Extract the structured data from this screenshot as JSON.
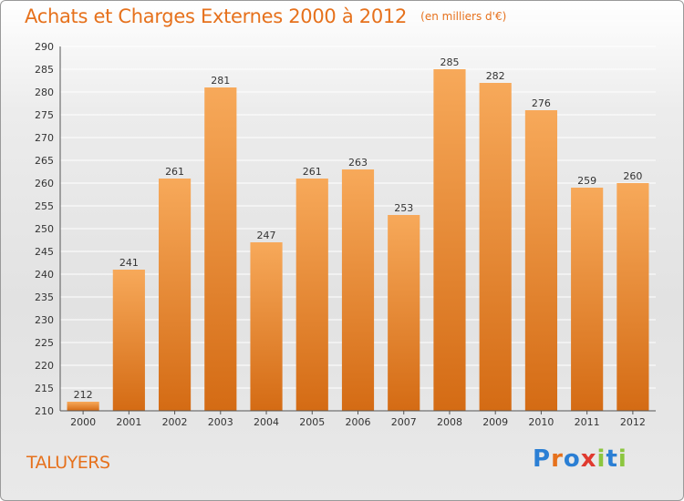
{
  "header": {
    "title": "Achats et Charges Externes 2000 à 2012",
    "subtitle": "(en milliers d'€)"
  },
  "footer": {
    "commune": "TALUYERS",
    "logo": {
      "text": "Proxiti",
      "letters": [
        {
          "char": "P",
          "color": "#2b7fd4"
        },
        {
          "char": "r",
          "color": "#e6711c"
        },
        {
          "char": "o",
          "color": "#2b7fd4"
        },
        {
          "char": "x",
          "color": "#e03a2f"
        },
        {
          "char": "i",
          "color": "#8cc63f"
        },
        {
          "char": "t",
          "color": "#2b7fd4"
        },
        {
          "char": "i",
          "color": "#8cc63f"
        }
      ]
    }
  },
  "colors": {
    "accent": "#e6711c",
    "bar_top": "#f7a95a",
    "bar_bottom": "#d46b14",
    "grid": "#ffffff",
    "axis": "#555555"
  },
  "chart_data": {
    "type": "bar",
    "title": "Achats et Charges Externes 2000 à 2012",
    "subtitle": "(en milliers d'€)",
    "xlabel": "",
    "ylabel": "",
    "categories": [
      "2000",
      "2001",
      "2002",
      "2003",
      "2004",
      "2005",
      "2006",
      "2007",
      "2008",
      "2009",
      "2010",
      "2011",
      "2012"
    ],
    "values": [
      212,
      241,
      261,
      281,
      247,
      261,
      263,
      253,
      285,
      282,
      276,
      259,
      260
    ],
    "ylim": [
      210,
      290
    ],
    "yticks": [
      210,
      215,
      220,
      225,
      230,
      235,
      240,
      245,
      250,
      255,
      260,
      265,
      270,
      275,
      280,
      285,
      290
    ],
    "grid": true,
    "data_labels": true,
    "legend": "none"
  }
}
